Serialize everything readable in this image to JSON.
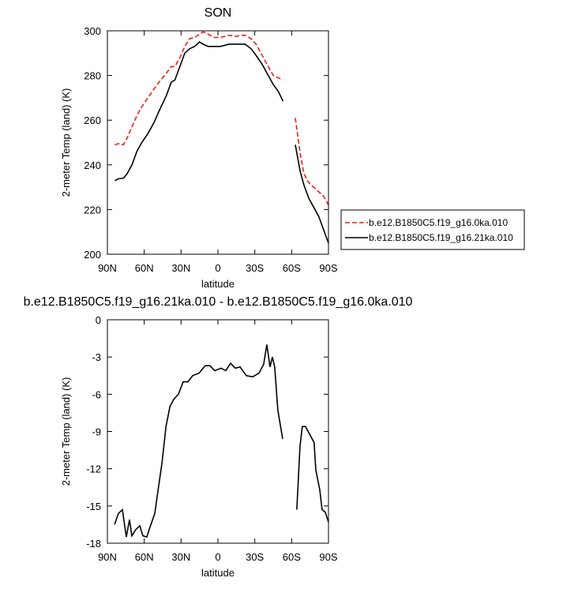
{
  "chart_data": [
    {
      "type": "line",
      "title": "SON",
      "xlabel": "latitude",
      "ylabel": "2-meter Temp (land) (K)",
      "x": [
        84,
        81,
        77,
        74,
        70,
        66,
        62,
        57,
        52,
        48,
        42,
        38,
        35,
        31,
        27,
        23,
        19,
        15,
        12,
        8,
        3,
        -2,
        -9,
        -15,
        -19,
        -22,
        -27,
        -31,
        -36,
        -41,
        -45,
        -49,
        -53,
        -58,
        -63,
        -67,
        -70,
        -74,
        -78,
        -82,
        -86,
        -90
      ],
      "xlim": [
        90,
        -90
      ],
      "xticks": [
        {
          "value": 90,
          "label": "90N"
        },
        {
          "value": 60,
          "label": "60N"
        },
        {
          "value": 30,
          "label": "30N"
        },
        0,
        {
          "value": -30,
          "label": "30S"
        },
        {
          "value": -60,
          "label": "60S"
        },
        {
          "value": -90,
          "label": "90S"
        }
      ],
      "ylim": [
        200,
        300
      ],
      "yticks": [
        200,
        220,
        240,
        260,
        280,
        300
      ],
      "legend": "right",
      "series": [
        {
          "name": "b.e12.B1850C5.f19_g16.0ka.010",
          "color": "#e8221c",
          "dash": "dashed",
          "values": [
            249,
            249.5,
            249,
            252,
            257,
            262,
            266,
            270,
            274,
            277,
            281,
            284,
            284,
            288,
            293,
            296.5,
            297,
            298.5,
            299.5,
            298.5,
            297,
            297,
            298,
            297.5,
            298,
            298,
            296.5,
            294,
            289,
            284,
            280,
            279,
            278,
            null,
            261,
            245,
            236,
            232,
            230,
            228,
            226,
            222
          ]
        },
        {
          "name": "b.e12.B1850C5.f19_g16.21ka.010",
          "color": "#000000",
          "dash": "solid",
          "values": [
            232.9,
            233.8,
            234,
            236,
            240,
            246,
            250,
            254,
            259,
            264,
            271,
            277,
            278,
            284,
            290,
            292,
            293,
            295,
            294,
            293,
            293,
            293,
            294,
            294,
            294,
            294,
            292,
            289,
            285,
            280,
            276,
            273,
            268.5,
            null,
            249,
            237,
            231,
            225,
            221,
            217,
            211,
            205
          ]
        }
      ]
    },
    {
      "type": "line",
      "title": "b.e12.B1850C5.f19_g16.21ka.010 - b.e12.B1850C5.f19_g16.0ka.010",
      "xlabel": "latitude",
      "ylabel": "2-meter Temp (land) (K)",
      "x": [
        84.2,
        81,
        77.8,
        74.6,
        72,
        70.1,
        66.9,
        63.6,
        61.1,
        57.9,
        55.3,
        51.4,
        48.7,
        45.5,
        42.3,
        39.1,
        35.9,
        32.2,
        28.3,
        24.4,
        20.6,
        15.4,
        10.3,
        6.5,
        2.6,
        -2.5,
        -6.4,
        -10.3,
        -14.1,
        -18,
        -23.1,
        -28.3,
        -33.4,
        -37.2,
        -39.8,
        -42.4,
        -44.3,
        -46.2,
        -48.8,
        -52.7,
        -58,
        -64.2,
        -66.8,
        -68.7,
        -71.3,
        -78.3,
        -79.7,
        -82.9,
        -84.8,
        -87.4,
        -90
      ],
      "xlim": [
        90,
        -90
      ],
      "xticks": [
        {
          "value": 90,
          "label": "90N"
        },
        {
          "value": 60,
          "label": "60N"
        },
        {
          "value": 30,
          "label": "30N"
        },
        0,
        {
          "value": -30,
          "label": "30S"
        },
        {
          "value": -60,
          "label": "60S"
        },
        {
          "value": -90,
          "label": "90S"
        }
      ],
      "ylim": [
        -18,
        0
      ],
      "yticks": [
        -18,
        -15,
        -12,
        -9,
        -6,
        -3,
        0
      ],
      "series": [
        {
          "color": "#000000",
          "dash": "solid",
          "values": [
            -16.5,
            -15.6,
            -15.3,
            -17.5,
            -16.1,
            -17.4,
            -16.9,
            -16.6,
            -17.4,
            -17.5,
            -16.7,
            -15.6,
            -13.7,
            -11.5,
            -8.6,
            -7,
            -6.4,
            -6,
            -5,
            -5,
            -4.5,
            -4.3,
            -3.7,
            -3.7,
            -4.1,
            -3.9,
            -4.1,
            -3.5,
            -3.9,
            -3.8,
            -4.5,
            -4.6,
            -4.3,
            -3.6,
            -2,
            -3.8,
            -3,
            -3.8,
            -7.3,
            -9.6,
            null,
            -15.3,
            -10.2,
            -8.6,
            -8.6,
            -9.9,
            -12.1,
            -13.7,
            -15.3,
            -15.5,
            -16.3
          ]
        }
      ]
    }
  ]
}
